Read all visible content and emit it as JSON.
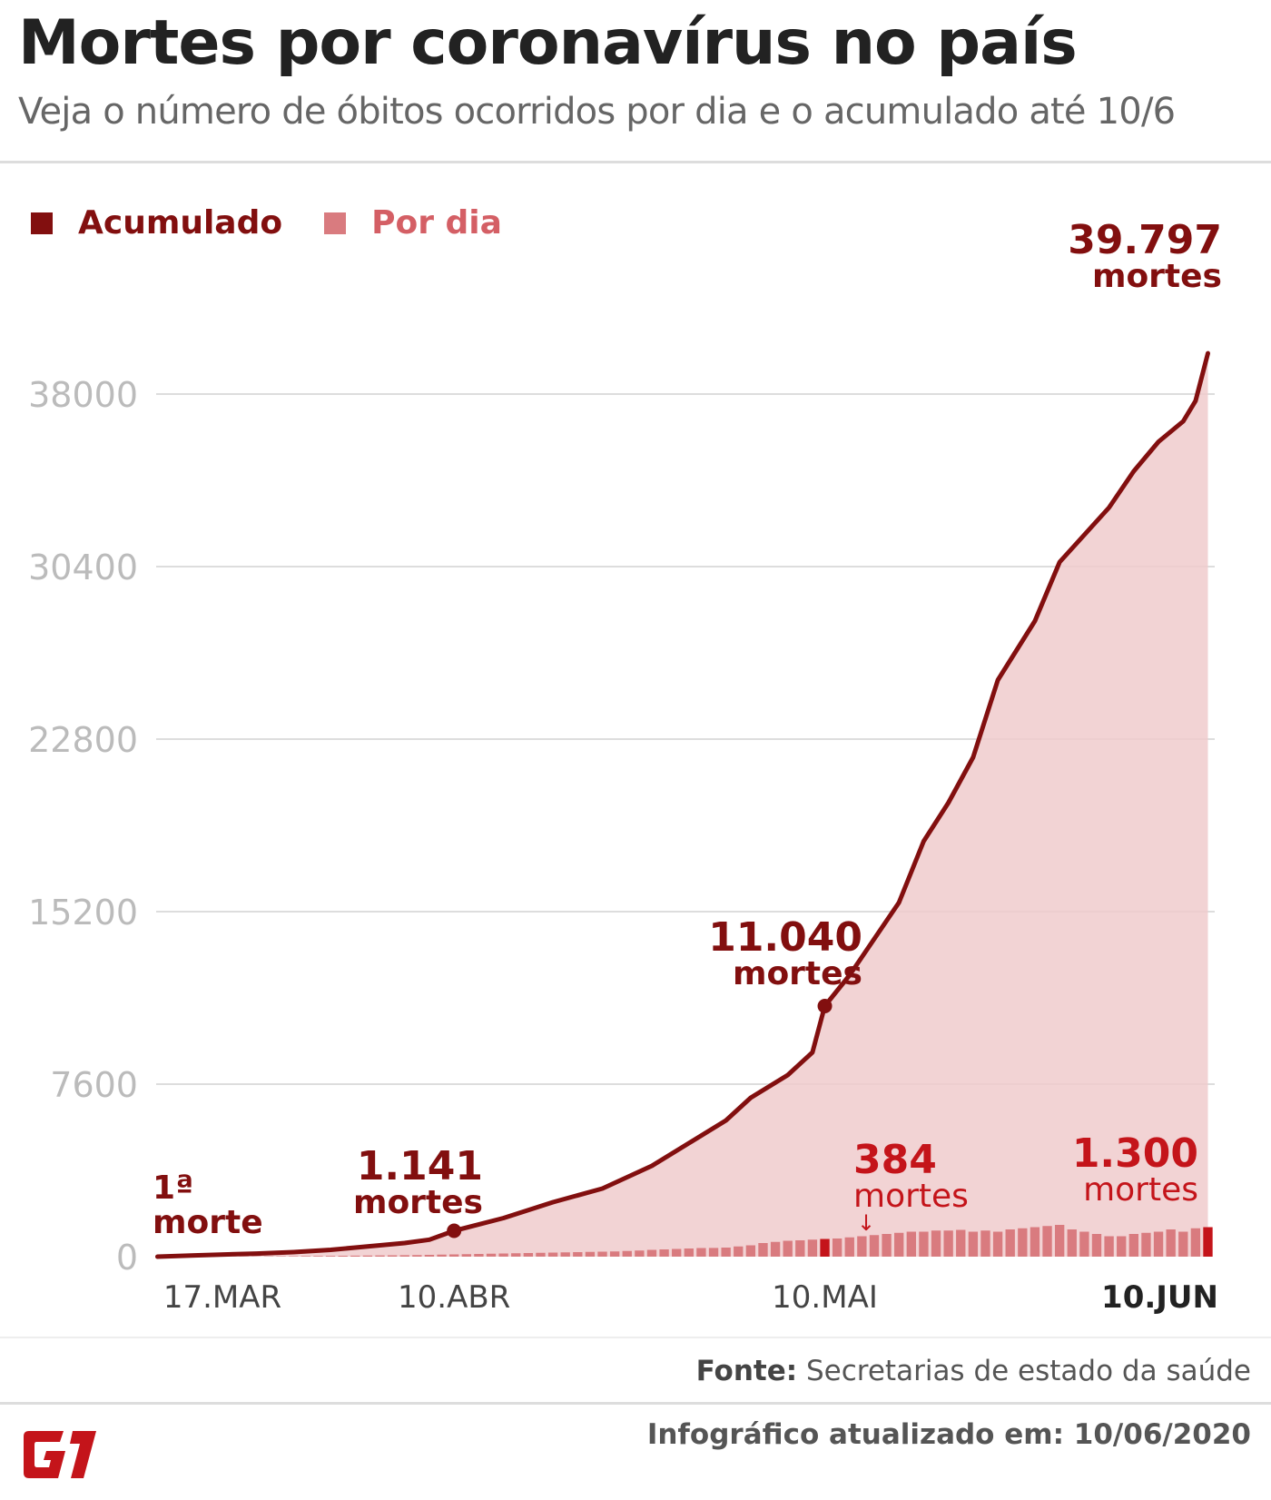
{
  "title": "Mortes por coronavírus no país",
  "subtitle": "Veja o número de óbitos ocorridos por dia e o acumulado até 10/6",
  "legend": {
    "cumulative": "Acumulado",
    "daily": "Por dia"
  },
  "colors": {
    "cumulative_line": "#820f0f",
    "cumulative_fill": "#f0cbcd",
    "daily_bar": "#d97b7f",
    "daily_highlight": "#c4141a",
    "annotation_daily": "#c4141a",
    "grid": "#dddddd",
    "axis_label": "#bbbbbb"
  },
  "annotations": {
    "first_death_line1": "1ª",
    "first_death_line2": "morte",
    "apr10_value": "1.141",
    "apr10_unit": "mortes",
    "may10_value": "11.040",
    "may10_unit": "mortes",
    "final_value": "39.797",
    "final_unit": "mortes",
    "may10_daily_value": "384",
    "may10_daily_unit": "mortes",
    "jun10_daily_value": "1.300",
    "jun10_daily_unit": "mortes",
    "arrow": "↓"
  },
  "footer": {
    "source_label": "Fonte:",
    "source_text": "Secretarias de estado da saúde",
    "updated": "Infográfico atualizado em: 10/06/2020",
    "logo": "G1"
  },
  "chart_data": {
    "type": "area",
    "x_start": "2020-03-17",
    "x_end": "2020-06-10",
    "ylim": [
      0,
      40000
    ],
    "yticks": [
      0,
      7600,
      15200,
      22800,
      30400,
      38000
    ],
    "ytick_labels": [
      "0",
      "7600",
      "15200",
      "22800",
      "30400",
      "38000"
    ],
    "xtick_labels": [
      {
        "date": "2020-03-17",
        "label": "17.MAR",
        "bold": false
      },
      {
        "date": "2020-04-10",
        "label": "10.ABR",
        "bold": false
      },
      {
        "date": "2020-05-10",
        "label": "10.MAI",
        "bold": false
      },
      {
        "date": "2020-06-10",
        "label": "10.JUN",
        "bold": true
      }
    ],
    "grid": true,
    "legend_position": "top-left",
    "series": [
      {
        "name": "Acumulado",
        "type": "area-line",
        "x": [
          "2020-03-17",
          "2020-03-20",
          "2020-03-25",
          "2020-03-28",
          "2020-03-31",
          "2020-04-02",
          "2020-04-04",
          "2020-04-06",
          "2020-04-08",
          "2020-04-10",
          "2020-04-14",
          "2020-04-18",
          "2020-04-22",
          "2020-04-26",
          "2020-04-29",
          "2020-05-02",
          "2020-05-04",
          "2020-05-07",
          "2020-05-09",
          "2020-05-10",
          "2020-05-12",
          "2020-05-15",
          "2020-05-16",
          "2020-05-18",
          "2020-05-20",
          "2020-05-22",
          "2020-05-24",
          "2020-05-27",
          "2020-05-29",
          "2020-05-31",
          "2020-06-02",
          "2020-06-04",
          "2020-06-06",
          "2020-06-08",
          "2020-06-09",
          "2020-06-10"
        ],
        "values": [
          1,
          57,
          136,
          201,
          300,
          400,
          500,
          600,
          750,
          1141,
          1700,
          2400,
          3000,
          4000,
          5000,
          6000,
          7000,
          8000,
          9000,
          11040,
          12400,
          14800,
          15600,
          18300,
          20000,
          22000,
          25400,
          28000,
          30600,
          31800,
          33000,
          34600,
          35900,
          36800,
          37700,
          39797
        ]
      },
      {
        "name": "Por dia",
        "type": "bar",
        "x_start": "2020-03-17",
        "values": [
          1,
          2,
          3,
          3,
          4,
          5,
          8,
          10,
          12,
          15,
          18,
          20,
          25,
          30,
          35,
          40,
          45,
          50,
          55,
          60,
          65,
          70,
          80,
          90,
          100,
          110,
          120,
          130,
          140,
          150,
          160,
          170,
          180,
          190,
          200,
          210,
          220,
          230,
          250,
          270,
          300,
          320,
          340,
          360,
          380,
          384,
          400,
          450,
          500,
          600,
          650,
          700,
          720,
          750,
          780,
          800,
          850,
          900,
          950,
          1000,
          1050,
          1100,
          1100,
          1150,
          1150,
          1180,
          1100,
          1150,
          1100,
          1200,
          1250,
          1300,
          1350,
          1400,
          1200,
          1100,
          1000,
          900,
          900,
          1000,
          1050,
          1100,
          1200,
          1100,
          1250,
          1300
        ]
      }
    ]
  }
}
